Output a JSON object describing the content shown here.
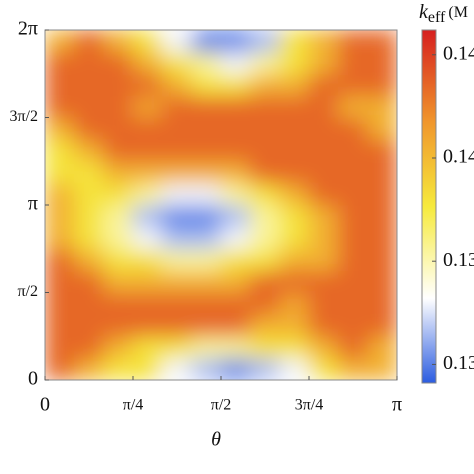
{
  "chart_data": {
    "type": "heatmap",
    "x_label": "θ",
    "colorbar_title": {
      "symbol": "k",
      "subscript": "eff",
      "unit": "(M"
    },
    "x": [
      0.1309,
      0.3927,
      0.6545,
      0.9163,
      1.1781,
      1.4399,
      1.7017,
      1.9635,
      2.2253,
      2.4871,
      2.7489,
      3.0107
    ],
    "y": [
      0.1963,
      0.589,
      0.9817,
      1.3744,
      1.7671,
      2.1598,
      2.5525,
      2.9452,
      3.3379,
      3.7306,
      4.1233,
      4.516,
      4.9087,
      5.3014,
      5.6941,
      6.0868
    ],
    "z": [
      [
        0.1435,
        0.1405,
        0.138,
        0.138,
        0.133,
        0.1315,
        0.13,
        0.1315,
        0.133,
        0.138,
        0.1405,
        0.1405
      ],
      [
        0.1435,
        0.1435,
        0.1405,
        0.138,
        0.138,
        0.1355,
        0.1355,
        0.138,
        0.138,
        0.1405,
        0.1435,
        0.1405
      ],
      [
        0.1435,
        0.1435,
        0.1435,
        0.1435,
        0.1435,
        0.1435,
        0.1435,
        0.1405,
        0.1405,
        0.1435,
        0.1435,
        0.1435
      ],
      [
        0.1435,
        0.1435,
        0.1435,
        0.1435,
        0.1435,
        0.1435,
        0.1435,
        0.1435,
        0.141,
        0.1435,
        0.1435,
        0.1435
      ],
      [
        0.1435,
        0.1435,
        0.1405,
        0.1405,
        0.1405,
        0.1405,
        0.1405,
        0.1435,
        0.1435,
        0.1435,
        0.1435,
        0.1435
      ],
      [
        0.1435,
        0.1405,
        0.138,
        0.138,
        0.1355,
        0.1355,
        0.138,
        0.138,
        0.1405,
        0.1405,
        0.1435,
        0.1435
      ],
      [
        0.1405,
        0.138,
        0.1355,
        0.133,
        0.1315,
        0.1315,
        0.133,
        0.1355,
        0.138,
        0.1405,
        0.1435,
        0.1435
      ],
      [
        0.1405,
        0.138,
        0.1355,
        0.1315,
        0.13,
        0.13,
        0.1315,
        0.1355,
        0.138,
        0.1405,
        0.1435,
        0.1435
      ],
      [
        0.1405,
        0.138,
        0.138,
        0.1355,
        0.133,
        0.133,
        0.1355,
        0.138,
        0.1405,
        0.1435,
        0.1435,
        0.1435
      ],
      [
        0.138,
        0.138,
        0.1405,
        0.1405,
        0.1405,
        0.1405,
        0.1405,
        0.1435,
        0.1435,
        0.1435,
        0.1435,
        0.1435
      ],
      [
        0.138,
        0.1405,
        0.1435,
        0.1435,
        0.1435,
        0.1435,
        0.1435,
        0.1435,
        0.1435,
        0.1435,
        0.1435,
        0.1435
      ],
      [
        0.1405,
        0.1435,
        0.1435,
        0.1435,
        0.1435,
        0.1435,
        0.1435,
        0.1435,
        0.1435,
        0.1435,
        0.1435,
        0.1405
      ],
      [
        0.1435,
        0.1435,
        0.1435,
        0.141,
        0.1435,
        0.1435,
        0.1435,
        0.1435,
        0.1435,
        0.1435,
        0.1405,
        0.1405
      ],
      [
        0.1435,
        0.1435,
        0.1435,
        0.1435,
        0.1405,
        0.138,
        0.138,
        0.1405,
        0.1405,
        0.1435,
        0.1435,
        0.1435
      ],
      [
        0.1435,
        0.1435,
        0.1435,
        0.1405,
        0.138,
        0.1355,
        0.133,
        0.1355,
        0.138,
        0.1405,
        0.1435,
        0.1435
      ],
      [
        0.1405,
        0.1435,
        0.1405,
        0.138,
        0.133,
        0.13,
        0.13,
        0.1315,
        0.138,
        0.1405,
        0.1435,
        0.1435
      ]
    ],
    "xlim": [
      0,
      3.1416
    ],
    "ylim": [
      0,
      6.2832
    ],
    "xticks": [
      0,
      {
        "value": 0.7854,
        "label": "π/4"
      },
      {
        "value": 1.5708,
        "label": "π/2"
      },
      {
        "value": 2.3562,
        "label": "3π/4"
      },
      {
        "value": 3.1416,
        "label": "π"
      }
    ],
    "yticks": [
      0,
      {
        "value": 1.5708,
        "label": "π/2"
      },
      {
        "value": 3.1416,
        "label": "π"
      },
      {
        "value": 4.7124,
        "label": "3π/2"
      },
      {
        "value": 6.2832,
        "label": "2π"
      }
    ],
    "zlim": [
      0.1291,
      0.1462
    ],
    "zticks": [
      {
        "value": 0.13,
        "label": "0.13"
      },
      {
        "value": 0.135,
        "label": "0.13"
      },
      {
        "value": 0.14,
        "label": "0.14"
      },
      {
        "value": 0.145,
        "label": "0.14"
      }
    ],
    "colorscale": [
      [
        0,
        "#2b5ce0"
      ],
      [
        0.24,
        "#ffffff"
      ],
      [
        0.5,
        "#f6ea3c"
      ],
      [
        0.74,
        "#f0962c"
      ],
      [
        1,
        "#d61f1f"
      ]
    ]
  }
}
